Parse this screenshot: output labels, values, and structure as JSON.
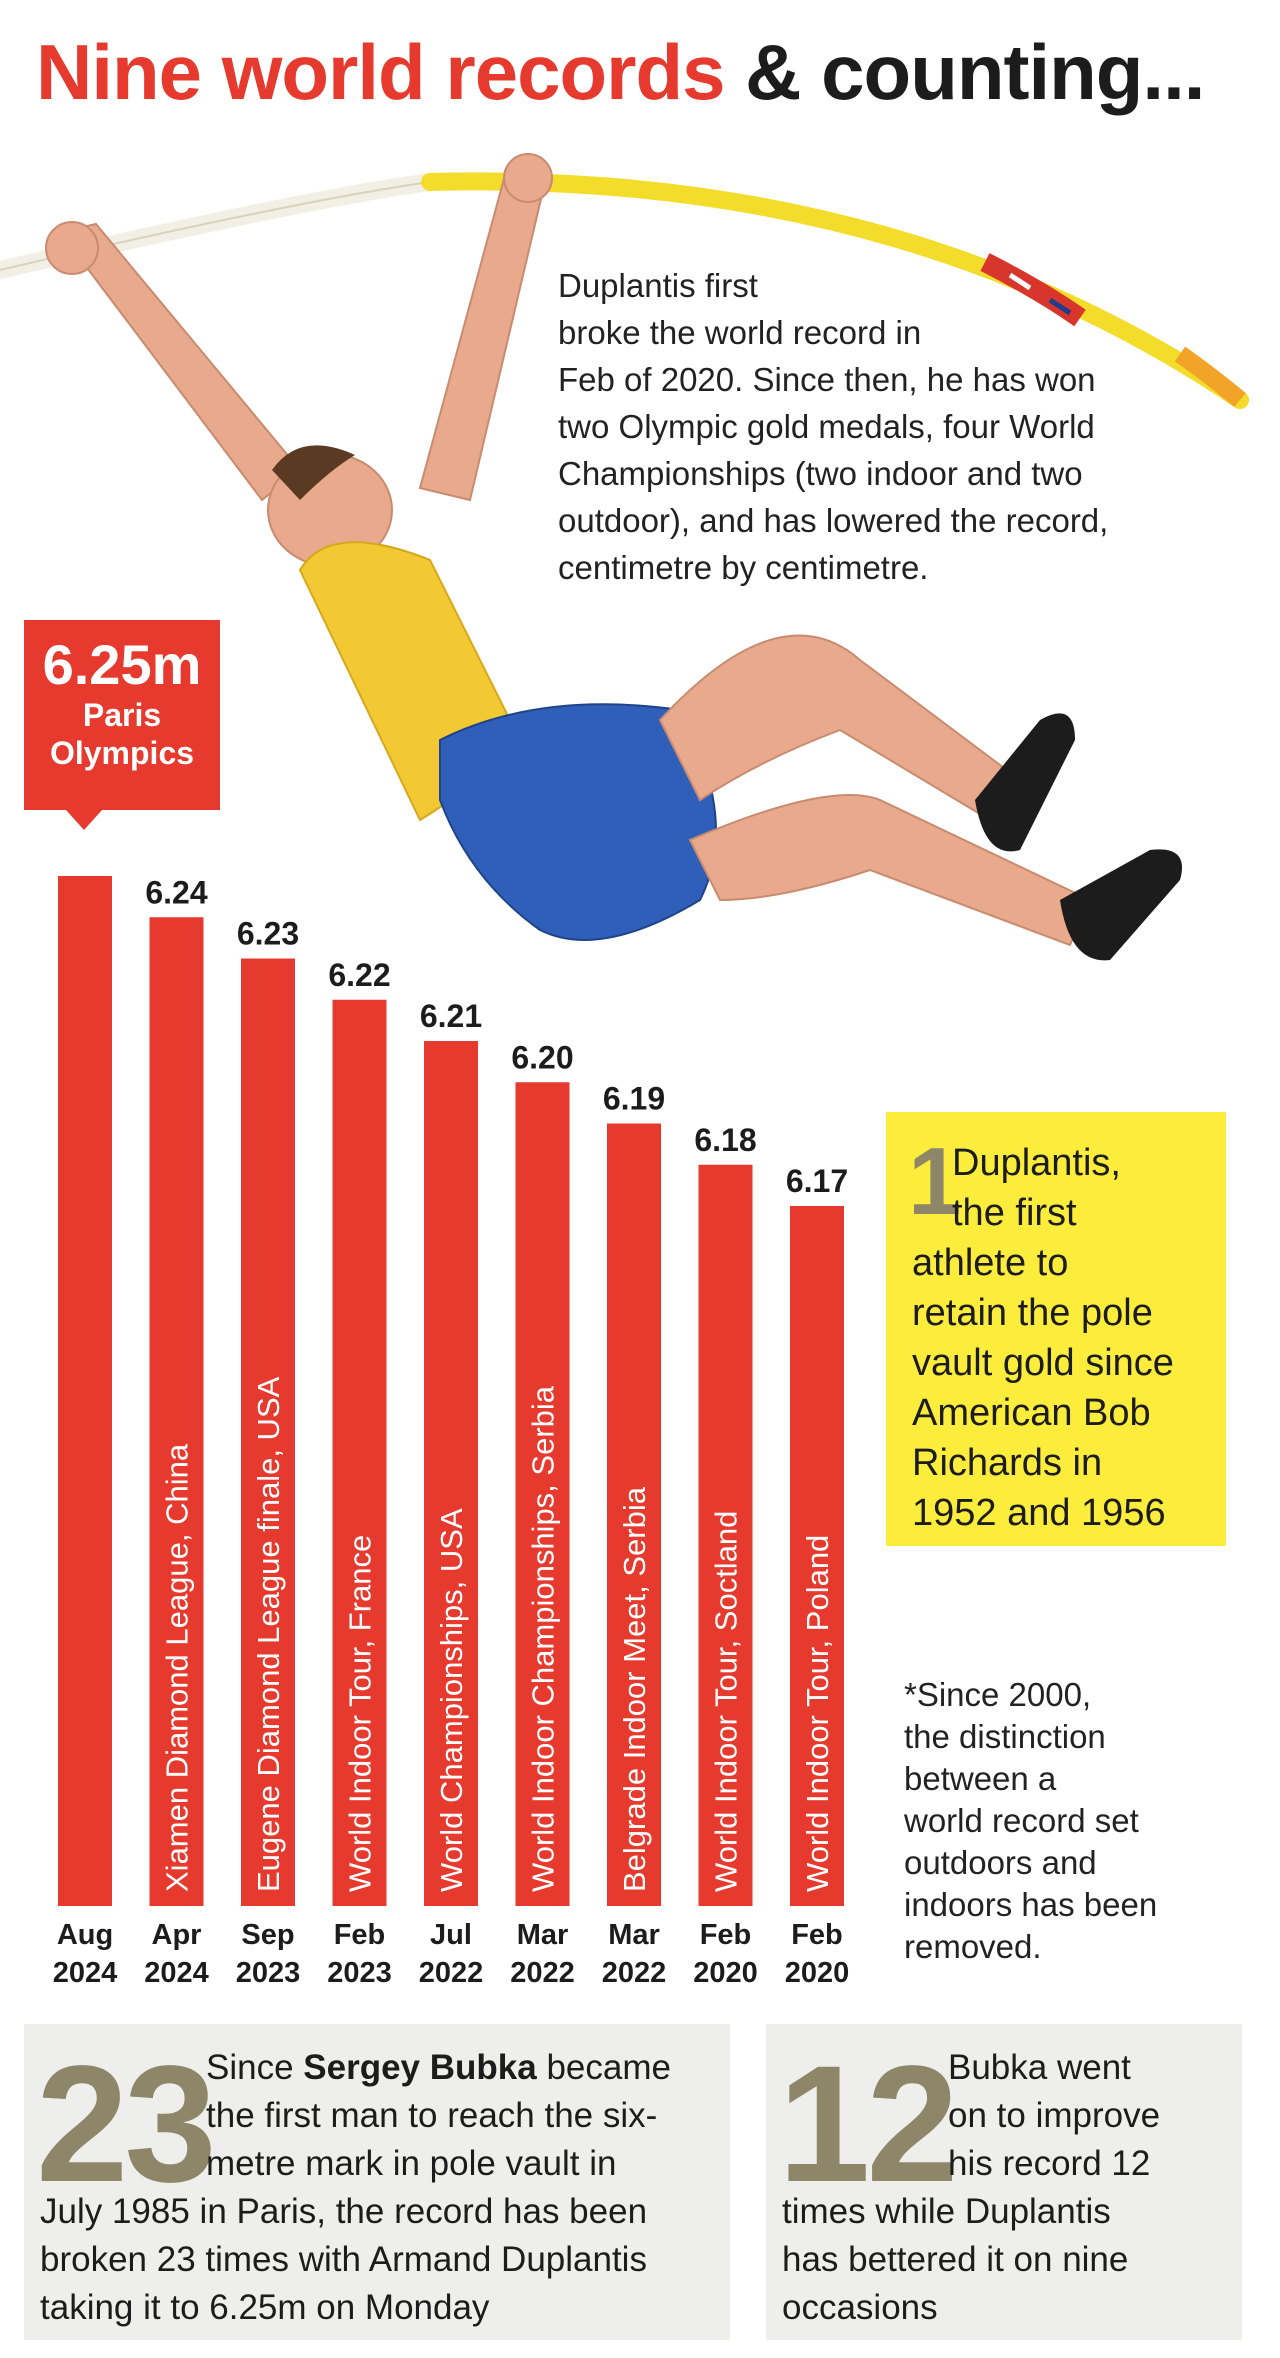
{
  "title": {
    "part1": "Nine world records",
    "part2": "& counting..."
  },
  "intro_lines": [
    "Duplantis first",
    "broke the world record in",
    "Feb of 2020. Since then, he has won",
    "two Olympic gold medals, four World",
    "Championships (two indoor and two",
    "outdoor), and has lowered the record,",
    "centimetre by centimetre."
  ],
  "callout": {
    "value": "6.25m",
    "label_lines": [
      "Paris",
      "Olympics"
    ]
  },
  "chart_data": {
    "type": "bar",
    "categories": [
      "Aug 2024",
      "Apr 2024",
      "Sep 2023",
      "Feb 2023",
      "Jul 2022",
      "Mar 2022",
      "Mar 2022",
      "Feb 2020",
      "Feb 2020"
    ],
    "month_labels": [
      "Aug",
      "Apr",
      "Sep",
      "Feb",
      "Jul",
      "Mar",
      "Mar",
      "Feb",
      "Feb"
    ],
    "year_labels": [
      "2024",
      "2024",
      "2023",
      "2023",
      "2022",
      "2022",
      "2022",
      "2020",
      "2020"
    ],
    "values": [
      6.25,
      6.24,
      6.23,
      6.22,
      6.21,
      6.2,
      6.19,
      6.18,
      6.17
    ],
    "value_labels": [
      "",
      "6.24",
      "6.23",
      "6.22",
      "6.21",
      "6.20",
      "6.19",
      "6.18",
      "6.17"
    ],
    "venues": [
      "",
      "Xiamen Diamond League, China",
      "Eugene Diamond League finale, USA",
      "World Indoor Tour, France",
      "World Championships, USA",
      "World Indoor Championships, Serbia",
      "Belgrade Indoor Meet, Serbia",
      "World Indoor Tour, Soctland",
      "World Indoor Tour, Poland"
    ],
    "bar_color": "#e63a2e"
  },
  "side_note": {
    "number": "1",
    "lines": [
      "Duplantis,",
      "the first",
      "athlete to",
      "retain the pole",
      "vault gold since",
      "American Bob",
      "Richards in",
      "1952 and 1956"
    ]
  },
  "footnote_lines": [
    "*Since 2000,",
    "the distinction",
    "between a",
    "world record set",
    "outdoors and",
    "indoors has been",
    "removed."
  ],
  "stat1": {
    "number": "23",
    "line1_pre": "Since ",
    "line1_bold": "Sergey Bubka",
    "line1_post": " became",
    "lines": [
      "the first man to reach the six-",
      "metre mark in pole vault in",
      "July 1985 in Paris, the record has been",
      "broken 23 times with Armand Duplantis",
      "taking it to 6.25m on Monday"
    ]
  },
  "stat2": {
    "number": "12",
    "lines": [
      "Bubka went",
      "on to improve",
      "his record 12",
      "times while Duplantis",
      "has bettered it on nine",
      "occasions"
    ]
  },
  "colors": {
    "red": "#e63a2e",
    "yellow": "#fcec3b",
    "olive": "#8e8668",
    "grey_box": "#eeeeec"
  }
}
